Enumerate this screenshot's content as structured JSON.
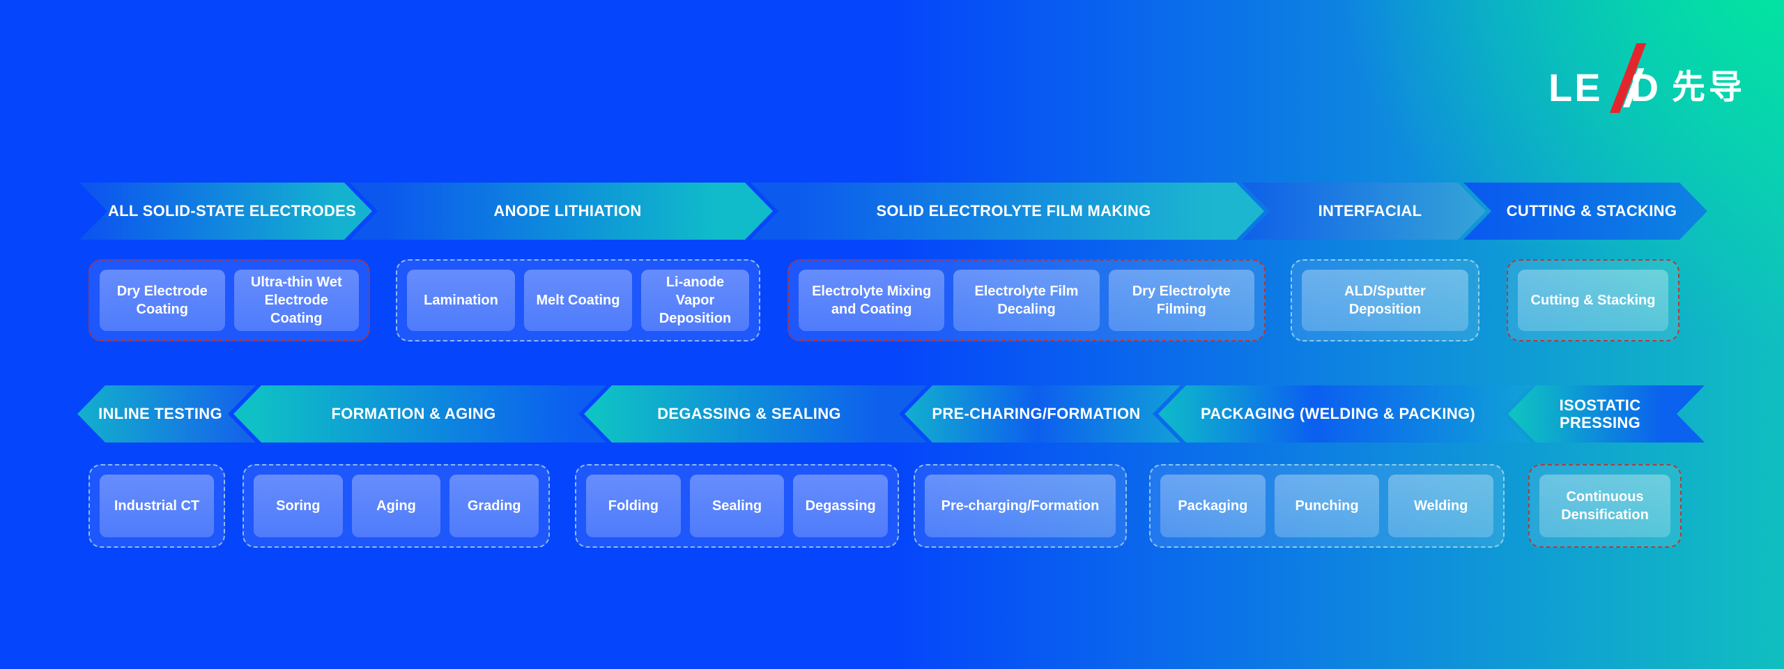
{
  "logo": {
    "le": "LE",
    "d": "D",
    "cn": "先导",
    "slash_color": "#e4262c"
  },
  "palette": {
    "bg_blue": "#0545fb",
    "bg_green": "#01e79e",
    "arrow_blue": "#0c5bee",
    "arrow_teal": "#10bfc0",
    "group_border_red": "#be3028",
    "group_border_cyan": "#b9e6f2",
    "text": "#ffffff"
  },
  "rows": [
    {
      "direction": "right",
      "arrows": [
        {
          "label": "ALL SOLID-STATE ELECTRODES"
        },
        {
          "label": "ANODE LITHIATION"
        },
        {
          "label": "SOLID ELECTROLYTE FILM MAKING"
        },
        {
          "label": "INTERFACIAL"
        },
        {
          "label": "CUTTING & STACKING"
        }
      ],
      "groups": [
        {
          "accent": "red",
          "items": [
            "Dry Electrode Coating",
            "Ultra-thin Wet Electrode Coating"
          ]
        },
        {
          "accent": "cyan",
          "items": [
            "Lamination",
            "Melt Coating",
            "Li-anode Vapor Deposition"
          ]
        },
        {
          "accent": "red",
          "items": [
            "Electrolyte Mixing and Coating",
            "Electrolyte Film Decaling",
            "Dry Electrolyte Filming"
          ]
        },
        {
          "accent": "cyan",
          "items": [
            "ALD/Sputter Deposition"
          ]
        },
        {
          "accent": "red",
          "items": [
            "Cutting & Stacking"
          ]
        }
      ]
    },
    {
      "direction": "left",
      "arrows": [
        {
          "label": "INLINE TESTING"
        },
        {
          "label": "FORMATION & AGING"
        },
        {
          "label": "DEGASSING & SEALING"
        },
        {
          "label": "PRE-CHARING/FORMATION"
        },
        {
          "label": "PACKAGING (WELDING & PACKING)"
        },
        {
          "label": "ISOSTATIC PRESSING"
        }
      ],
      "groups": [
        {
          "accent": "cyan",
          "items": [
            "Industrial CT"
          ]
        },
        {
          "accent": "cyan",
          "items": [
            "Soring",
            "Aging",
            "Grading"
          ]
        },
        {
          "accent": "cyan",
          "items": [
            "Folding",
            "Sealing",
            "Degassing"
          ]
        },
        {
          "accent": "cyan",
          "items": [
            "Pre-charging/Formation"
          ]
        },
        {
          "accent": "cyan",
          "items": [
            "Packaging",
            "Punching",
            "Welding"
          ]
        },
        {
          "accent": "red",
          "items": [
            "Continuous Densification"
          ]
        }
      ]
    }
  ]
}
